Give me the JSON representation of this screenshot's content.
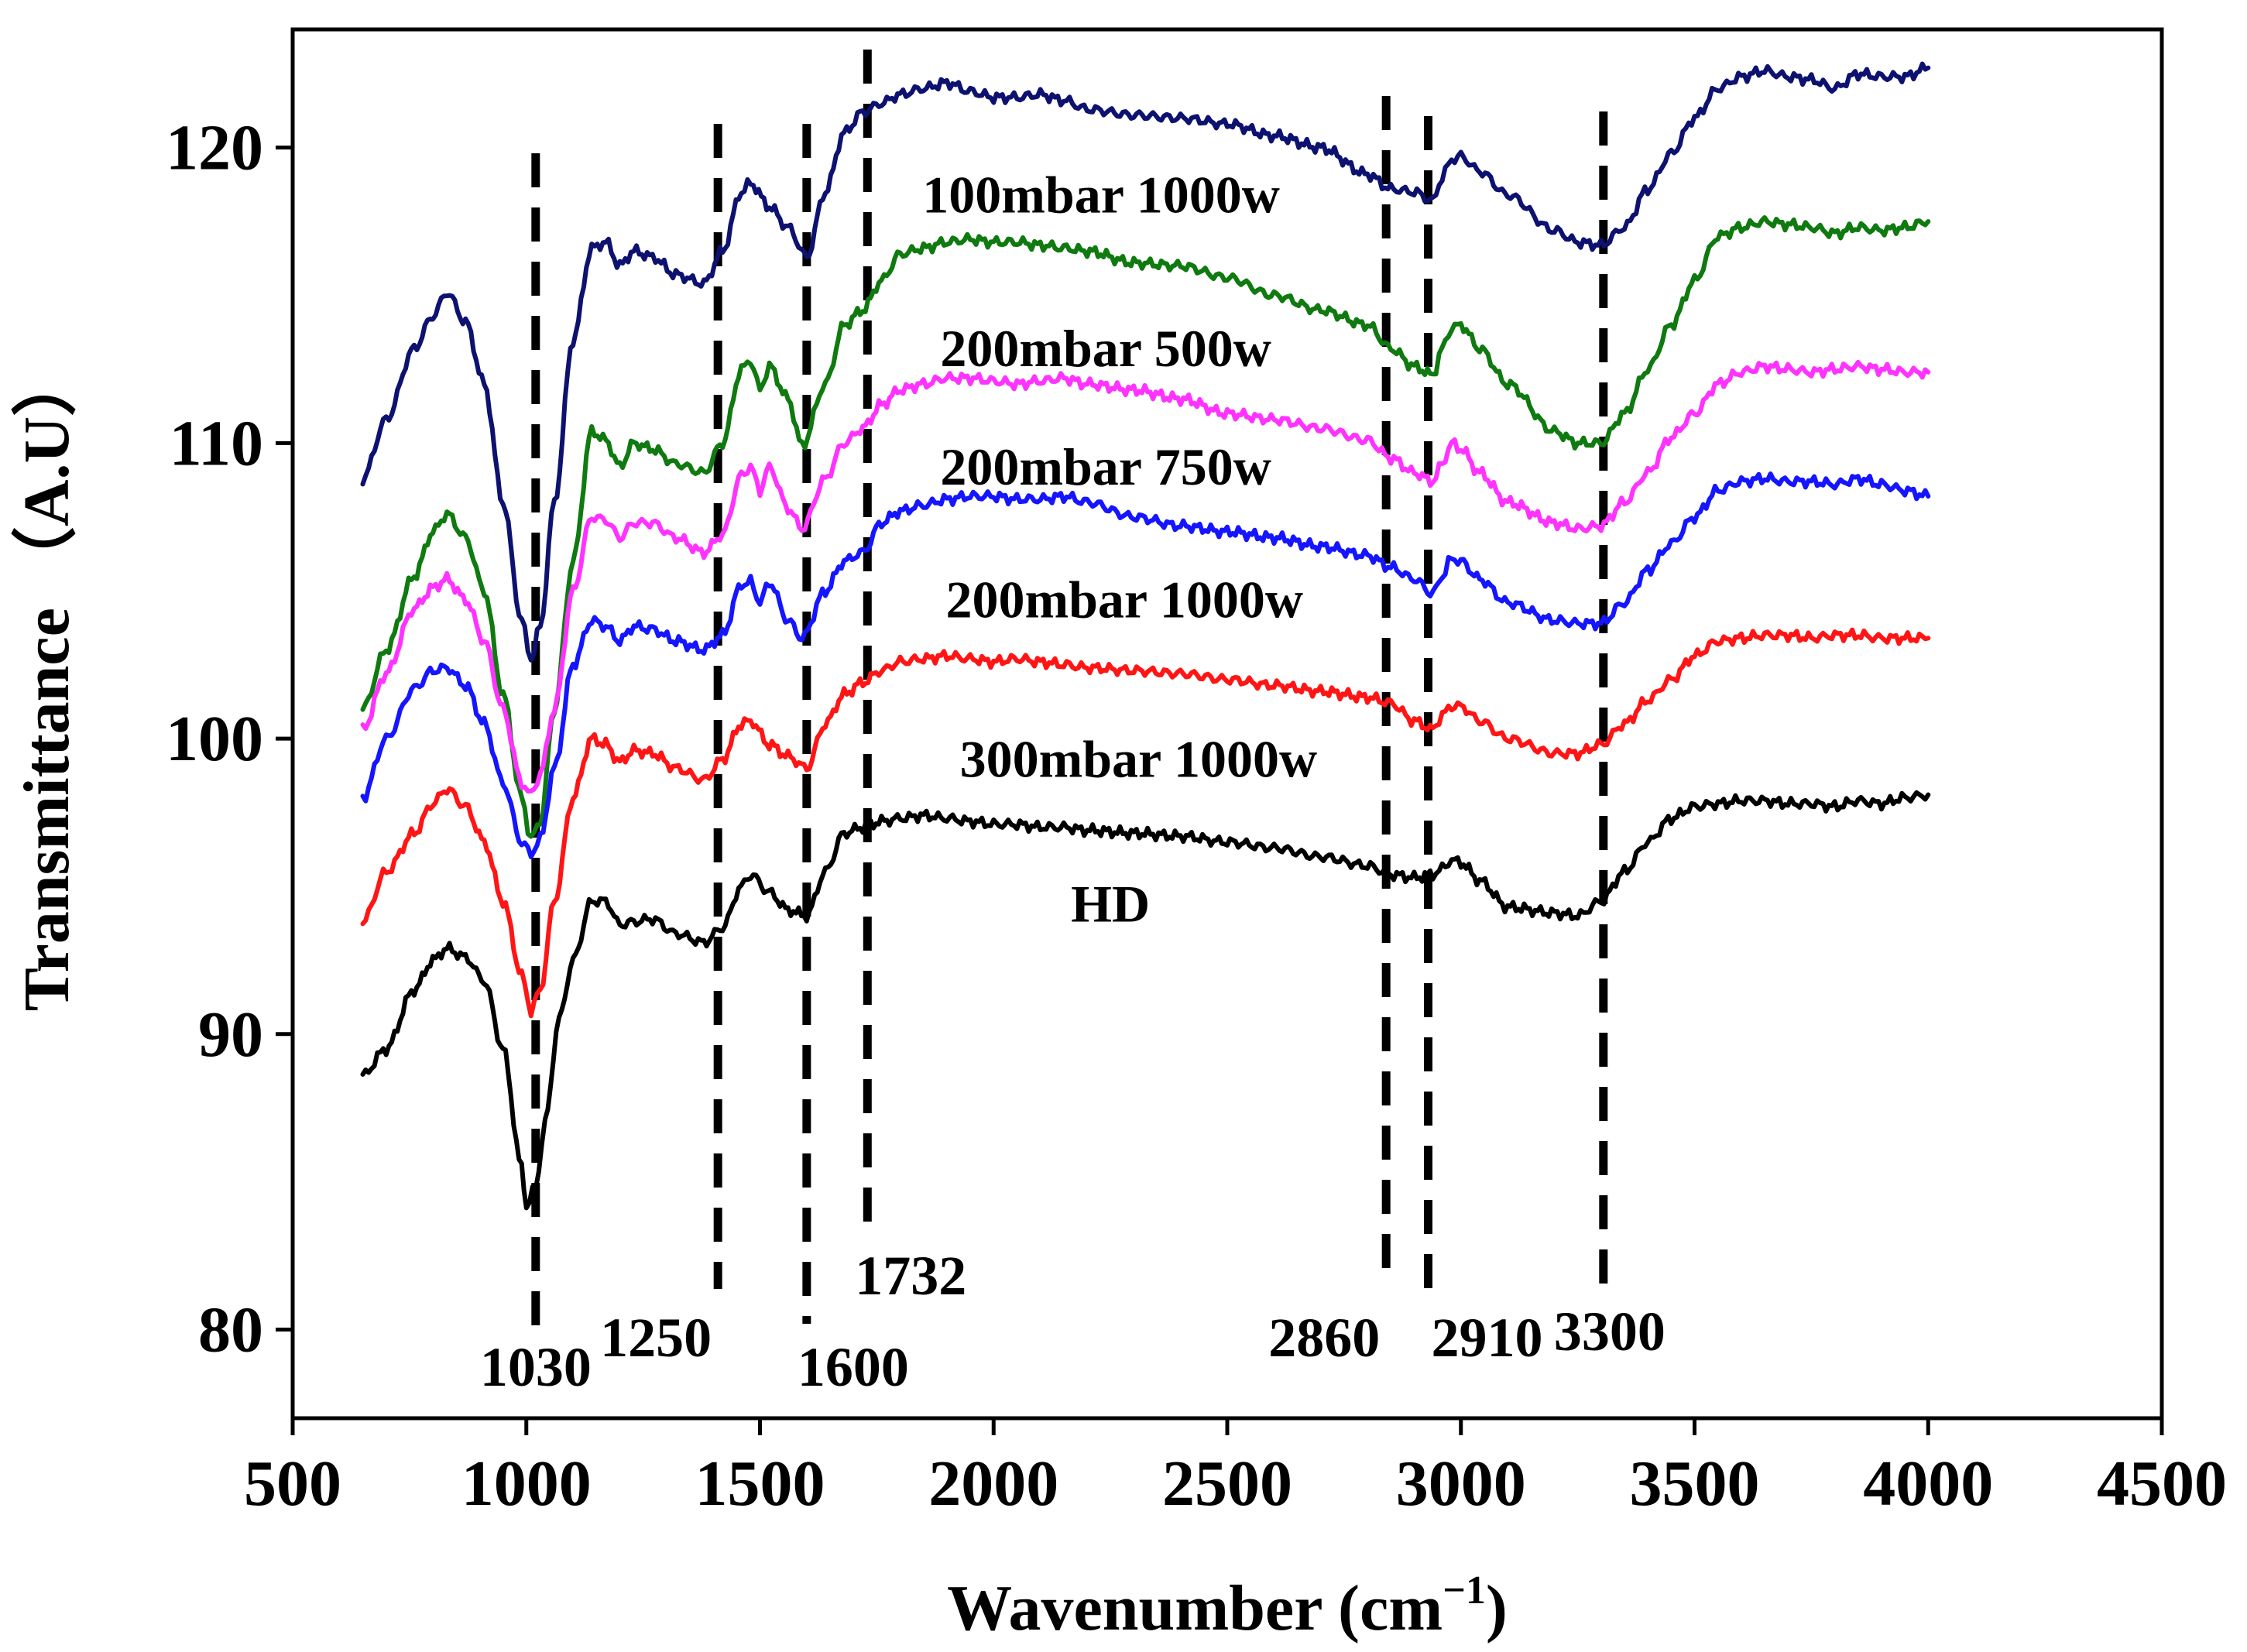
{
  "chart_data": {
    "type": "line",
    "title": "",
    "xlabel": "Wavenumber (cm",
    "xlabel_sup": "−1",
    "xlabel_close": ")",
    "ylabel": "Transmittance （A.U）",
    "xlim": [
      500,
      4500
    ],
    "ylim": [
      77,
      124
    ],
    "xticks": [
      "500",
      "1000",
      "1500",
      "2000",
      "2500",
      "3000",
      "3500",
      "4000",
      "4500"
    ],
    "yticks": [
      "80",
      "90",
      "100",
      "110",
      "120"
    ],
    "colors": {
      "100mbar_1000w": "#0d1270",
      "200mbar_500w": "#0f7a0f",
      "200mbar_750w": "#ff33ff",
      "200mbar_1000w": "#1515ff",
      "300mbar_1000w": "#ff1515",
      "hd": "#000000"
    },
    "peaks": [
      {
        "label": "1030",
        "x": 1020
      },
      {
        "label": "1250",
        "x": 1410
      },
      {
        "label": "1600",
        "x": 1600
      },
      {
        "label": "1732",
        "x": 1730
      },
      {
        "label": "2860",
        "x": 2840
      },
      {
        "label": "2910",
        "x": 2930
      },
      {
        "label": "3300",
        "x": 3305
      }
    ],
    "series": [
      {
        "name": "100mbar 1000w",
        "color": "#0d1270",
        "x": [
          650,
          700,
          760,
          800,
          830,
          870,
          910,
          950,
          990,
          1010,
          1030,
          1060,
          1100,
          1140,
          1170,
          1200,
          1230,
          1270,
          1320,
          1380,
          1420,
          1460,
          1480,
          1520,
          1560,
          1600,
          1640,
          1680,
          1720,
          1760,
          1800,
          1850,
          1900,
          1950,
          2000,
          2050,
          2100,
          2150,
          2200,
          2300,
          2400,
          2500,
          2600,
          2700,
          2800,
          2850,
          2900,
          2940,
          2960,
          2980,
          3000,
          3040,
          3100,
          3200,
          3250,
          3300,
          3350,
          3400,
          3450,
          3500,
          3550,
          3600,
          3650,
          3700,
          3750,
          3800,
          3850,
          3900,
          3950,
          4000
        ],
        "y": [
          108.8,
          110.8,
          113.2,
          114.3,
          115.1,
          114.1,
          112.0,
          108.0,
          104.0,
          102.7,
          103.8,
          108.0,
          113.5,
          116.6,
          116.8,
          116.0,
          116.5,
          116.3,
          115.7,
          115.4,
          116.5,
          118.5,
          118.8,
          118.0,
          117.3,
          116.3,
          118.5,
          120.5,
          121.2,
          121.5,
          121.8,
          122.0,
          122.2,
          121.9,
          121.7,
          121.7,
          121.8,
          121.6,
          121.3,
          121.1,
          121.0,
          120.8,
          120.4,
          120.0,
          119.1,
          118.6,
          118.5,
          118.2,
          119.0,
          119.6,
          119.7,
          119.2,
          118.4,
          117.2,
          116.8,
          116.7,
          117.3,
          118.6,
          119.8,
          121.0,
          122.0,
          122.4,
          122.6,
          122.4,
          122.3,
          122.0,
          122.5,
          122.4,
          122.4,
          122.7
        ]
      },
      {
        "name": "200mbar 500w",
        "color": "#0f7a0f",
        "x": [
          650,
          700,
          760,
          800,
          830,
          870,
          910,
          950,
          990,
          1010,
          1030,
          1060,
          1100,
          1140,
          1170,
          1200,
          1230,
          1270,
          1320,
          1380,
          1420,
          1460,
          1480,
          1500,
          1520,
          1560,
          1590,
          1640,
          1680,
          1720,
          1760,
          1800,
          1850,
          1900,
          1950,
          2000,
          2050,
          2100,
          2150,
          2200,
          2300,
          2400,
          2500,
          2600,
          2700,
          2800,
          2850,
          2900,
          2940,
          2960,
          2980,
          3000,
          3040,
          3100,
          3200,
          3250,
          3300,
          3350,
          3400,
          3450,
          3500,
          3550,
          3600,
          3650,
          3700,
          3750,
          3800,
          3850,
          3900,
          3950,
          4000
        ],
        "y": [
          101.0,
          103.0,
          105.5,
          107.0,
          107.6,
          106.8,
          105.0,
          101.5,
          98.0,
          96.6,
          97.2,
          101.0,
          106.0,
          110.4,
          110.1,
          109.2,
          110.0,
          109.8,
          109.3,
          109.0,
          110.0,
          112.5,
          112.8,
          111.8,
          112.6,
          111.5,
          109.9,
          112.0,
          114.0,
          114.5,
          115.5,
          116.4,
          116.6,
          116.8,
          116.9,
          116.8,
          116.8,
          116.7,
          116.6,
          116.5,
          116.1,
          116.0,
          115.6,
          115.0,
          114.5,
          114.0,
          113.2,
          112.6,
          112.3,
          113.2,
          113.9,
          114.0,
          113.2,
          112.0,
          110.4,
          110.0,
          110.0,
          111.0,
          112.5,
          114.0,
          115.5,
          117.0,
          117.3,
          117.5,
          117.4,
          117.3,
          117.1,
          117.3,
          117.2,
          117.3,
          117.5
        ]
      },
      {
        "name": "200mbar 750w",
        "color": "#ff33ff",
        "x": [
          650,
          700,
          760,
          800,
          830,
          870,
          910,
          950,
          990,
          1010,
          1030,
          1060,
          1100,
          1140,
          1170,
          1200,
          1230,
          1270,
          1320,
          1380,
          1420,
          1460,
          1480,
          1500,
          1520,
          1560,
          1590,
          1640,
          1680,
          1720,
          1760,
          1800,
          1850,
          1900,
          1950,
          2000,
          2050,
          2100,
          2150,
          2200,
          2300,
          2400,
          2500,
          2600,
          2700,
          2800,
          2850,
          2900,
          2940,
          2960,
          2980,
          3000,
          3040,
          3100,
          3200,
          3250,
          3300,
          3350,
          3400,
          3450,
          3500,
          3550,
          3600,
          3650,
          3700,
          3750,
          3800,
          3850,
          3900,
          3950,
          4000
        ],
        "y": [
          100.3,
          102.2,
          104.4,
          105.1,
          105.4,
          104.7,
          103.3,
          101.0,
          98.5,
          98.1,
          98.8,
          101.0,
          105.0,
          107.5,
          107.4,
          106.8,
          107.3,
          107.3,
          106.8,
          106.3,
          106.9,
          108.9,
          109.2,
          108.4,
          109.2,
          107.8,
          107.1,
          108.8,
          110.0,
          110.5,
          111.3,
          111.8,
          112.0,
          112.2,
          112.2,
          112.1,
          112.0,
          112.1,
          112.2,
          112.0,
          111.8,
          111.5,
          111.0,
          110.8,
          110.5,
          110.1,
          109.5,
          109.0,
          108.7,
          109.3,
          110.0,
          109.8,
          109.0,
          108.0,
          107.3,
          107.1,
          107.2,
          108.0,
          109.0,
          110.2,
          111.0,
          112.0,
          112.4,
          112.6,
          112.5,
          112.4,
          112.5,
          112.6,
          112.5,
          112.4,
          112.4
        ]
      },
      {
        "name": "200mbar 1000w",
        "color": "#1515ff",
        "x": [
          650,
          700,
          760,
          800,
          830,
          870,
          910,
          950,
          990,
          1010,
          1030,
          1060,
          1100,
          1140,
          1170,
          1200,
          1230,
          1270,
          1320,
          1380,
          1420,
          1460,
          1480,
          1500,
          1520,
          1560,
          1590,
          1640,
          1680,
          1720,
          1760,
          1800,
          1850,
          1900,
          1950,
          2000,
          2050,
          2100,
          2150,
          2200,
          2300,
          2400,
          2500,
          2600,
          2700,
          2800,
          2850,
          2900,
          2940,
          2960,
          2980,
          3000,
          3040,
          3100,
          3200,
          3250,
          3300,
          3350,
          3400,
          3450,
          3500,
          3550,
          3600,
          3650,
          3700,
          3750,
          3800,
          3850,
          3900,
          3950,
          4000
        ],
        "y": [
          98.0,
          100.0,
          101.7,
          102.3,
          102.4,
          101.8,
          100.5,
          98.5,
          96.5,
          96.1,
          96.6,
          99.0,
          102.5,
          104.0,
          103.8,
          103.3,
          103.8,
          103.7,
          103.3,
          103.0,
          103.5,
          105.2,
          105.3,
          104.6,
          105.3,
          104.0,
          103.4,
          105.0,
          106.0,
          106.3,
          107.3,
          107.7,
          107.9,
          108.1,
          108.2,
          108.2,
          108.1,
          108.1,
          108.2,
          108.0,
          107.5,
          107.2,
          107.0,
          106.8,
          106.5,
          106.2,
          105.8,
          105.4,
          104.9,
          105.5,
          106.1,
          106.0,
          105.4,
          104.6,
          104.0,
          103.9,
          103.9,
          104.6,
          105.7,
          106.6,
          107.5,
          108.4,
          108.7,
          108.8,
          108.7,
          108.7,
          108.6,
          108.8,
          108.6,
          108.4,
          108.2
        ]
      },
      {
        "name": "300mbar 1000w",
        "color": "#ff1515",
        "x": [
          650,
          700,
          760,
          800,
          830,
          870,
          910,
          950,
          990,
          1010,
          1030,
          1060,
          1100,
          1140,
          1170,
          1200,
          1230,
          1270,
          1320,
          1380,
          1420,
          1460,
          1480,
          1520,
          1560,
          1600,
          1640,
          1680,
          1720,
          1760,
          1800,
          1850,
          1900,
          1950,
          2000,
          2050,
          2100,
          2150,
          2200,
          2300,
          2400,
          2500,
          2600,
          2700,
          2800,
          2850,
          2900,
          2940,
          2960,
          2980,
          3000,
          3040,
          3100,
          3200,
          3250,
          3300,
          3350,
          3400,
          3450,
          3500,
          3550,
          3600,
          3650,
          3700,
          3750,
          3800,
          3850,
          3900,
          3950,
          4000
        ],
        "y": [
          93.8,
          95.5,
          96.8,
          97.8,
          98.3,
          97.7,
          96.5,
          94.5,
          92.0,
          90.8,
          91.5,
          94.5,
          98.0,
          100.0,
          99.8,
          99.2,
          99.6,
          99.5,
          99.0,
          98.6,
          99.3,
          100.5,
          100.6,
          99.8,
          99.4,
          99.0,
          100.5,
          101.5,
          101.9,
          102.3,
          102.6,
          102.7,
          102.8,
          102.7,
          102.6,
          102.7,
          102.6,
          102.5,
          102.4,
          102.3,
          102.2,
          102.0,
          101.8,
          101.6,
          101.4,
          101.2,
          100.6,
          100.3,
          100.8,
          101.1,
          101.1,
          100.6,
          100.0,
          99.5,
          99.5,
          99.8,
          100.5,
          101.3,
          102.0,
          102.8,
          103.3,
          103.4,
          103.5,
          103.5,
          103.4,
          103.5,
          103.5,
          103.4,
          103.4,
          103.4
        ]
      },
      {
        "name": "HD",
        "color": "#000000",
        "x": [
          650,
          700,
          760,
          800,
          830,
          870,
          910,
          950,
          990,
          1000,
          1020,
          1040,
          1070,
          1100,
          1140,
          1170,
          1200,
          1230,
          1270,
          1320,
          1380,
          1420,
          1460,
          1480,
          1520,
          1560,
          1600,
          1640,
          1680,
          1720,
          1760,
          1800,
          1850,
          1900,
          1950,
          2000,
          2050,
          2100,
          2150,
          2200,
          2300,
          2400,
          2500,
          2600,
          2700,
          2800,
          2850,
          2900,
          2940,
          2960,
          2980,
          3000,
          3040,
          3100,
          3200,
          3250,
          3300,
          3350,
          3400,
          3450,
          3500,
          3550,
          3600,
          3650,
          3700,
          3750,
          3800,
          3850,
          3900,
          3950,
          4000
        ],
        "y": [
          88.6,
          89.5,
          91.5,
          92.5,
          92.9,
          92.6,
          91.8,
          89.5,
          85.5,
          84.2,
          84.8,
          87.0,
          90.5,
          92.5,
          94.5,
          94.5,
          93.7,
          93.8,
          93.9,
          93.4,
          93.1,
          93.6,
          95.0,
          95.4,
          94.8,
          94.2,
          94.0,
          95.5,
          96.8,
          97.0,
          97.2,
          97.3,
          97.4,
          97.3,
          97.2,
          97.1,
          97.1,
          97.0,
          97.0,
          96.9,
          96.8,
          96.7,
          96.5,
          96.3,
          96.0,
          95.7,
          95.4,
          95.3,
          95.4,
          95.6,
          95.9,
          95.8,
          95.2,
          94.3,
          94.1,
          94.0,
          94.5,
          95.5,
          96.5,
          97.3,
          97.7,
          97.8,
          97.9,
          97.9,
          97.8,
          97.8,
          97.7,
          97.9,
          97.8,
          98.0,
          98.1
        ]
      }
    ],
    "annotations": [
      {
        "text": "100mbar 1000w",
        "x": 2230,
        "y": 117.8
      },
      {
        "text": "200mbar 500w",
        "x": 2240,
        "y": 112.6
      },
      {
        "text": "200mbar 750w",
        "x": 2240,
        "y": 108.6
      },
      {
        "text": "200mbar 1000w",
        "x": 2280,
        "y": 104.1
      },
      {
        "text": "300mbar 1000w",
        "x": 2310,
        "y": 98.7
      },
      {
        "text": "HD",
        "x": 2250,
        "y": 93.8
      }
    ]
  }
}
